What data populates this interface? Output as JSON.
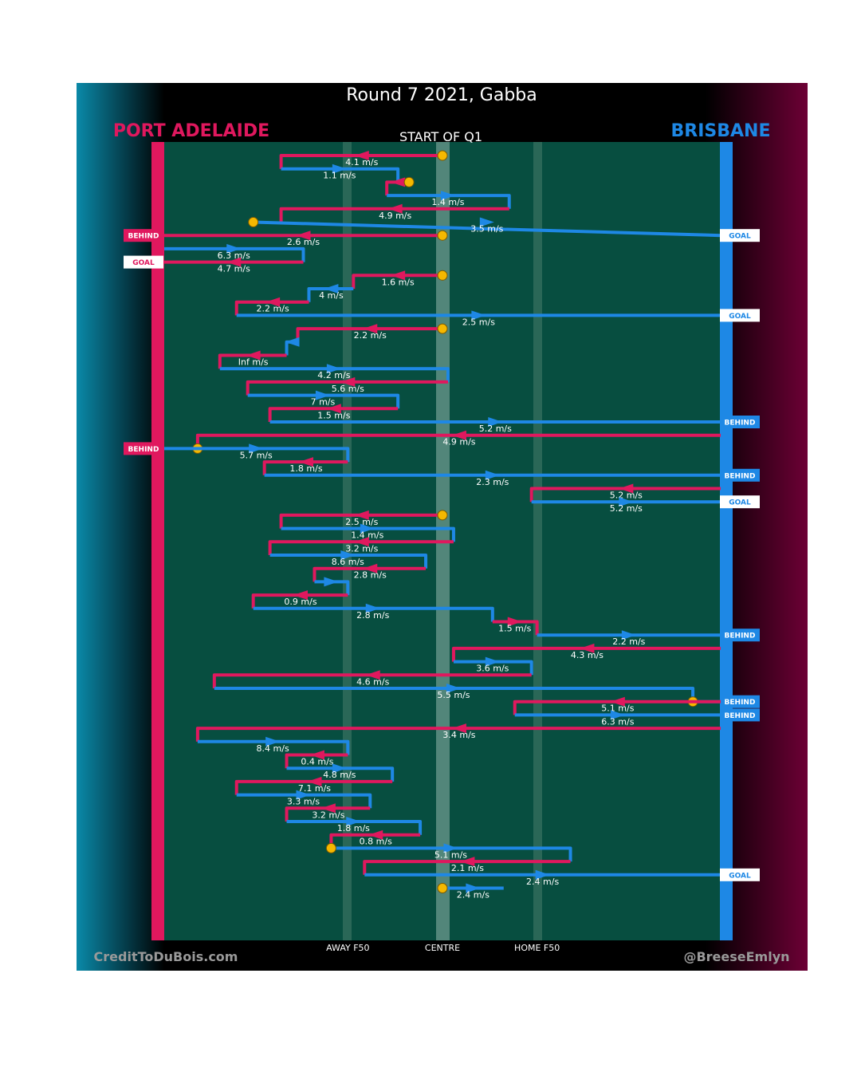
{
  "title": "Round 7 2021, Gabba",
  "subtitle": "START OF Q1",
  "teams": {
    "away": {
      "name": "PORT ADELAIDE",
      "color": "#e0185e"
    },
    "home": {
      "name": "BRISBANE",
      "color": "#1e88e5"
    }
  },
  "footer": {
    "left": "CreditToDuBois.com",
    "right": "@BreeseEmlyn"
  },
  "colors": {
    "field": "#074e40",
    "background": "#000000",
    "marker": "#f5b800"
  },
  "chart_data": {
    "type": "line",
    "x_axis": {
      "range": [
        0,
        100
      ],
      "ticks": [
        {
          "label": "AWAY F50",
          "value": 33
        },
        {
          "label": "CENTRE",
          "value": 50
        },
        {
          "label": "HOME F50",
          "value": 67
        }
      ]
    },
    "series": [
      {
        "name": "PORT ADELAIDE",
        "color": "#e0185e"
      },
      {
        "name": "BRISBANE",
        "color": "#1e88e5"
      }
    ],
    "y_order": "top-to-bottom is chronological possession chain order",
    "chains": [
      {
        "team": "away",
        "x": [
          50,
          21,
          21
        ],
        "speed": "4.1 m/s",
        "start_marker": true
      },
      {
        "team": "home",
        "x": [
          21,
          42,
          42
        ],
        "speed": "1.1 m/s"
      },
      {
        "team": "away",
        "x": [
          44,
          40,
          40
        ],
        "speed": "",
        "start_marker": true
      },
      {
        "team": "home",
        "x": [
          40,
          62,
          62
        ],
        "speed": "1.4 m/s"
      },
      {
        "team": "away",
        "x": [
          62,
          21,
          21
        ],
        "speed": "4.9 m/s"
      },
      {
        "team": "home",
        "x": [
          16,
          16,
          100
        ],
        "speed": "3.5 m/s",
        "start_marker": true,
        "outcome": "GOAL"
      },
      {
        "team": "away",
        "x": [
          50,
          0
        ],
        "speed": "2.6 m/s",
        "start_marker": true,
        "outcome": "BEHIND"
      },
      {
        "team": "home",
        "x": [
          0,
          25,
          25
        ],
        "speed": "6.3 m/s"
      },
      {
        "team": "away",
        "x": [
          25,
          0
        ],
        "speed": "4.7 m/s",
        "outcome": "GOAL"
      },
      {
        "team": "away",
        "x": [
          50,
          34,
          34
        ],
        "speed": "1.6 m/s",
        "start_marker": true
      },
      {
        "team": "home",
        "x": [
          34,
          26,
          26
        ],
        "speed": "4 m/s"
      },
      {
        "team": "away",
        "x": [
          26,
          13,
          13
        ],
        "speed": "2.2 m/s"
      },
      {
        "team": "home",
        "x": [
          13,
          100
        ],
        "speed": "2.5 m/s",
        "outcome": "GOAL"
      },
      {
        "team": "away",
        "x": [
          50,
          24,
          24
        ],
        "speed": "2.2 m/s",
        "start_marker": true
      },
      {
        "team": "home",
        "x": [
          24,
          22,
          22
        ],
        "speed": ""
      },
      {
        "team": "away",
        "x": [
          22,
          10,
          10
        ],
        "speed": "Inf m/s"
      },
      {
        "team": "home",
        "x": [
          10,
          51,
          51
        ],
        "speed": "4.2 m/s"
      },
      {
        "team": "away",
        "x": [
          51,
          15,
          15
        ],
        "speed": "5.6 m/s"
      },
      {
        "team": "home",
        "x": [
          15,
          42,
          42
        ],
        "speed": "7 m/s"
      },
      {
        "team": "away",
        "x": [
          42,
          19,
          19
        ],
        "speed": "1.5 m/s"
      },
      {
        "team": "home",
        "x": [
          19,
          100
        ],
        "speed": "5.2 m/s",
        "outcome": "BEHIND"
      },
      {
        "team": "away",
        "x": [
          100,
          6,
          6
        ],
        "speed": "4.9 m/s",
        "end_marker": true,
        "outcome": "BEHIND"
      },
      {
        "team": "home",
        "x": [
          0,
          33,
          33
        ],
        "speed": "5.7 m/s"
      },
      {
        "team": "away",
        "x": [
          33,
          18,
          18
        ],
        "speed": "1.8 m/s"
      },
      {
        "team": "home",
        "x": [
          18,
          100
        ],
        "speed": "2.3 m/s",
        "outcome": "BEHIND"
      },
      {
        "team": "away",
        "x": [
          100,
          66,
          66
        ],
        "speed": "5.2 m/s"
      },
      {
        "team": "home",
        "x": [
          66,
          100
        ],
        "speed": "5.2 m/s",
        "outcome": "GOAL"
      },
      {
        "team": "away",
        "x": [
          50,
          21,
          21
        ],
        "speed": "2.5 m/s",
        "start_marker": true
      },
      {
        "team": "home",
        "x": [
          21,
          52,
          52
        ],
        "speed": "1.4 m/s"
      },
      {
        "team": "away",
        "x": [
          52,
          19,
          19
        ],
        "speed": "3.2 m/s"
      },
      {
        "team": "home",
        "x": [
          19,
          47,
          47
        ],
        "speed": "8.6 m/s"
      },
      {
        "team": "away",
        "x": [
          47,
          27,
          27
        ],
        "speed": "2.8 m/s"
      },
      {
        "team": "home",
        "x": [
          27,
          33,
          33
        ],
        "speed": ""
      },
      {
        "team": "away",
        "x": [
          33,
          16,
          16
        ],
        "speed": "0.9 m/s"
      },
      {
        "team": "home",
        "x": [
          16,
          59,
          59
        ],
        "speed": "2.8 m/s"
      },
      {
        "team": "away",
        "x": [
          59,
          67,
          67
        ],
        "speed": "1.5 m/s"
      },
      {
        "team": "home",
        "x": [
          67,
          100
        ],
        "speed": "2.2 m/s",
        "outcome": "BEHIND"
      },
      {
        "team": "away",
        "x": [
          100,
          52,
          52
        ],
        "speed": "4.3 m/s"
      },
      {
        "team": "home",
        "x": [
          52,
          66,
          66
        ],
        "speed": "3.6 m/s"
      },
      {
        "team": "away",
        "x": [
          66,
          9,
          9
        ],
        "speed": "4.6 m/s"
      },
      {
        "team": "home",
        "x": [
          9,
          95,
          95,
          100
        ],
        "speed": "5.5 m/s",
        "end_marker": true,
        "outcome": "BEHIND"
      },
      {
        "team": "away",
        "x": [
          100,
          63,
          63
        ],
        "speed": "5.1 m/s"
      },
      {
        "team": "home",
        "x": [
          63,
          100
        ],
        "speed": "6.3 m/s",
        "outcome": "BEHIND"
      },
      {
        "team": "away",
        "x": [
          100,
          6,
          6
        ],
        "speed": "3.4 m/s"
      },
      {
        "team": "home",
        "x": [
          6,
          33,
          33
        ],
        "speed": "8.4 m/s"
      },
      {
        "team": "away",
        "x": [
          33,
          22,
          22
        ],
        "speed": "0.4 m/s"
      },
      {
        "team": "home",
        "x": [
          22,
          41,
          41
        ],
        "speed": "4.8 m/s"
      },
      {
        "team": "away",
        "x": [
          41,
          13,
          13
        ],
        "speed": "7.1 m/s"
      },
      {
        "team": "home",
        "x": [
          13,
          37,
          37
        ],
        "speed": "3.3 m/s"
      },
      {
        "team": "away",
        "x": [
          37,
          22,
          22
        ],
        "speed": "3.2 m/s"
      },
      {
        "team": "home",
        "x": [
          22,
          46,
          46
        ],
        "speed": "1.8 m/s"
      },
      {
        "team": "away",
        "x": [
          46,
          30,
          30
        ],
        "speed": "0.8 m/s"
      },
      {
        "team": "home",
        "x": [
          30,
          73,
          73
        ],
        "speed": "5.1 m/s",
        "start_marker": true
      },
      {
        "team": "away",
        "x": [
          73,
          36,
          36
        ],
        "speed": "2.1 m/s"
      },
      {
        "team": "home",
        "x": [
          36,
          100
        ],
        "speed": "2.4 m/s",
        "outcome": "GOAL"
      },
      {
        "team": "home",
        "x": [
          50,
          61
        ],
        "speed": "2.4 m/s",
        "start_marker": true
      }
    ]
  }
}
